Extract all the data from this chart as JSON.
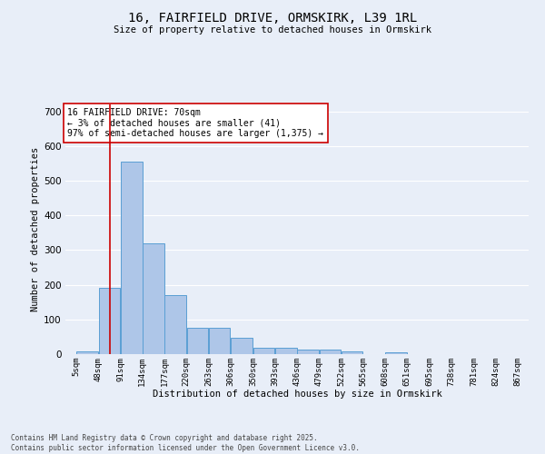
{
  "title": "16, FAIRFIELD DRIVE, ORMSKIRK, L39 1RL",
  "subtitle": "Size of property relative to detached houses in Ormskirk",
  "xlabel": "Distribution of detached houses by size in Ormskirk",
  "ylabel": "Number of detached properties",
  "bar_color": "#aec6e8",
  "bar_edge_color": "#5a9fd4",
  "background_color": "#e8eef8",
  "grid_color": "#ffffff",
  "vline_color": "#cc0000",
  "vline_x": 70,
  "annotation_text": "16 FAIRFIELD DRIVE: 70sqm\n← 3% of detached houses are smaller (41)\n97% of semi-detached houses are larger (1,375) →",
  "annotation_box_color": "#ffffff",
  "annotation_box_edge": "#cc0000",
  "footnote": "Contains HM Land Registry data © Crown copyright and database right 2025.\nContains public sector information licensed under the Open Government Licence v3.0.",
  "bin_edges": [
    5,
    48,
    91,
    134,
    177,
    220,
    263,
    306,
    350,
    393,
    436,
    479,
    522,
    565,
    608,
    651,
    695,
    738,
    781,
    824,
    867
  ],
  "bin_labels": [
    "5sqm",
    "48sqm",
    "91sqm",
    "134sqm",
    "177sqm",
    "220sqm",
    "263sqm",
    "306sqm",
    "350sqm",
    "393sqm",
    "436sqm",
    "479sqm",
    "522sqm",
    "565sqm",
    "608sqm",
    "651sqm",
    "695sqm",
    "738sqm",
    "781sqm",
    "824sqm",
    "867sqm"
  ],
  "bar_heights": [
    8,
    190,
    555,
    320,
    170,
    77,
    77,
    47,
    18,
    18,
    13,
    13,
    8,
    0,
    5,
    0,
    0,
    0,
    0,
    0
  ],
  "ylim": [
    0,
    720
  ],
  "yticks": [
    0,
    100,
    200,
    300,
    400,
    500,
    600,
    700
  ]
}
